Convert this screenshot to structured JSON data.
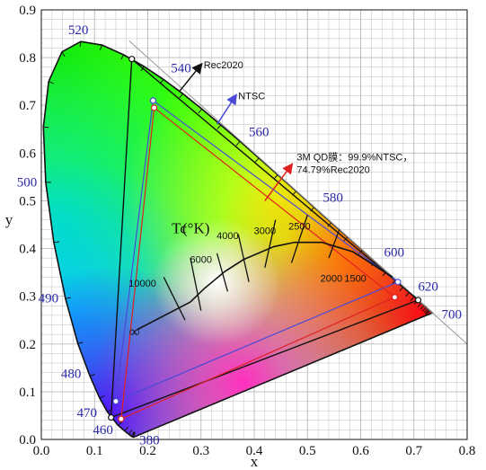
{
  "chart_data": {
    "type": "scatter",
    "title": "",
    "xlabel": "x",
    "ylabel": "y",
    "xlim": [
      0.0,
      0.8
    ],
    "ylim": [
      0.0,
      0.9
    ],
    "x_ticks": [
      "0.0",
      "0.1",
      "0.2",
      "0.3",
      "0.4",
      "0.5",
      "0.6",
      "0.7",
      "0.8"
    ],
    "y_ticks": [
      "0.0",
      "0.1",
      "0.2",
      "0.3",
      "0.4",
      "0.5",
      "0.6",
      "0.7",
      "0.8",
      "0.9"
    ],
    "grid": true,
    "spectral_locus_labels": [
      {
        "nm": "380",
        "x": 0.174,
        "y": 0.005
      },
      {
        "nm": "460",
        "x": 0.144,
        "y": 0.03
      },
      {
        "nm": "470",
        "x": 0.124,
        "y": 0.058
      },
      {
        "nm": "480",
        "x": 0.091,
        "y": 0.133
      },
      {
        "nm": "490",
        "x": 0.045,
        "y": 0.295
      },
      {
        "nm": "500",
        "x": 0.008,
        "y": 0.538
      },
      {
        "nm": "520",
        "x": 0.074,
        "y": 0.834
      },
      {
        "nm": "540",
        "x": 0.23,
        "y": 0.754
      },
      {
        "nm": "560",
        "x": 0.373,
        "y": 0.624
      },
      {
        "nm": "580",
        "x": 0.512,
        "y": 0.487
      },
      {
        "nm": "600",
        "x": 0.627,
        "y": 0.372
      },
      {
        "nm": "620",
        "x": 0.691,
        "y": 0.308
      },
      {
        "nm": "700",
        "x": 0.735,
        "y": 0.265
      }
    ],
    "series": [
      {
        "name": "Rec2020",
        "points": [
          [
            0.708,
            0.292
          ],
          [
            0.17,
            0.797
          ],
          [
            0.131,
            0.046
          ]
        ]
      },
      {
        "name": "NTSC",
        "points": [
          [
            0.67,
            0.33
          ],
          [
            0.21,
            0.71
          ],
          [
            0.14,
            0.08
          ]
        ]
      },
      {
        "name": "3M QD膜：99.9%NTSC，74.79%Rec2020",
        "points": [
          [
            0.664,
            0.298
          ],
          [
            0.212,
            0.695
          ],
          [
            0.15,
            0.043
          ]
        ]
      }
    ],
    "planckian_locus": {
      "label": "Tc(°K)",
      "temperatures": [
        "10000",
        "6000",
        "4000",
        "3000",
        "2500",
        "2000",
        "1500"
      ]
    },
    "colors": {
      "Rec2020": "#111111",
      "NTSC": "#4a4ad6",
      "3M": "#e02020",
      "wavelength_labels": "#2a2aa8",
      "grid": "#b8b8b8"
    }
  }
}
